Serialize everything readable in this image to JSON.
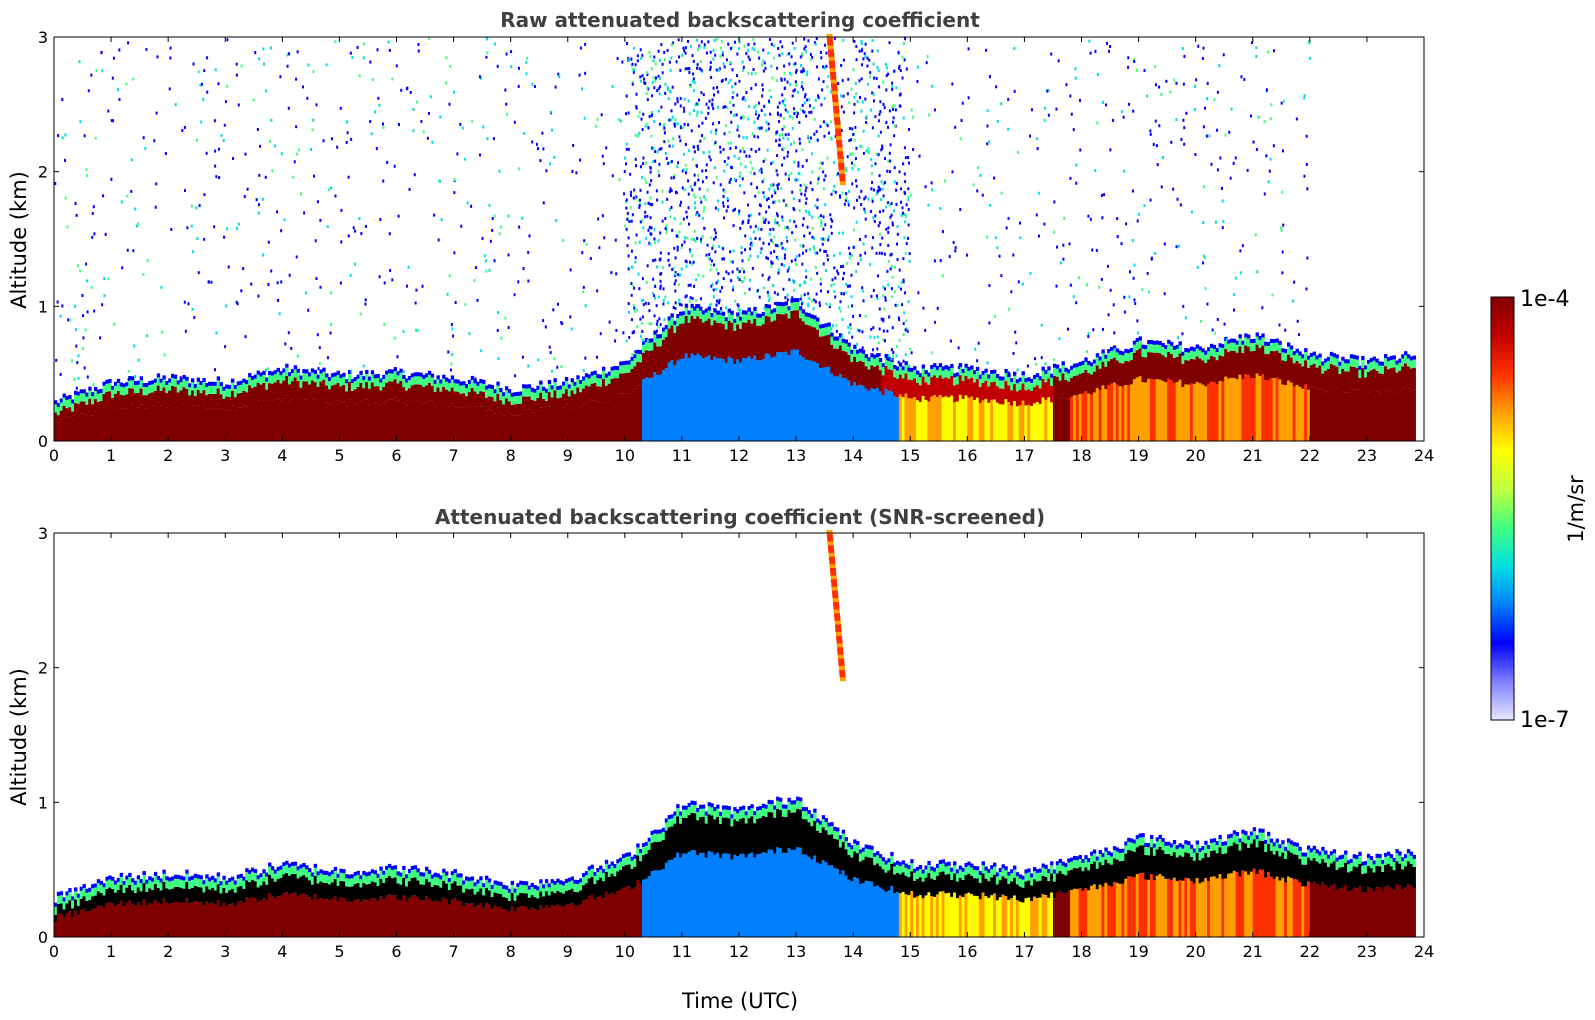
{
  "chart_data": [
    {
      "type": "heatmap",
      "title": "Raw attenuated backscattering coefficient",
      "xlabel": "",
      "ylabel": "Altitude (km)",
      "xlim": [
        0,
        24
      ],
      "ylim": [
        0,
        3
      ],
      "x_ticks": [
        "0",
        "1",
        "2",
        "3",
        "4",
        "5",
        "6",
        "7",
        "8",
        "9",
        "10",
        "11",
        "12",
        "13",
        "14",
        "15",
        "16",
        "17",
        "18",
        "19",
        "20",
        "21",
        "22",
        "23",
        "24"
      ],
      "y_ticks": [
        "0",
        "1",
        "2",
        "3"
      ],
      "screened": false,
      "boundary_layer_top_km": [
        {
          "t": 0,
          "h": 0.2
        },
        {
          "t": 1,
          "h": 0.35
        },
        {
          "t": 2,
          "h": 0.38
        },
        {
          "t": 3,
          "h": 0.35
        },
        {
          "t": 4,
          "h": 0.45
        },
        {
          "t": 5,
          "h": 0.4
        },
        {
          "t": 6,
          "h": 0.42
        },
        {
          "t": 7,
          "h": 0.38
        },
        {
          "t": 8,
          "h": 0.3
        },
        {
          "t": 9,
          "h": 0.35
        },
        {
          "t": 10,
          "h": 0.5
        },
        {
          "t": 11,
          "h": 0.9
        },
        {
          "t": 12,
          "h": 0.85
        },
        {
          "t": 13,
          "h": 0.95
        },
        {
          "t": 14,
          "h": 0.6
        },
        {
          "t": 15,
          "h": 0.45
        },
        {
          "t": 16,
          "h": 0.45
        },
        {
          "t": 17,
          "h": 0.4
        },
        {
          "t": 18,
          "h": 0.5
        },
        {
          "t": 19,
          "h": 0.65
        },
        {
          "t": 20,
          "h": 0.6
        },
        {
          "t": 21,
          "h": 0.7
        },
        {
          "t": 22,
          "h": 0.55
        },
        {
          "t": 23,
          "h": 0.5
        },
        {
          "t": 23.8,
          "h": 0.55
        }
      ]
    },
    {
      "type": "heatmap",
      "title": "Attenuated backscattering coefficient (SNR-screened)",
      "xlabel": "Time (UTC)",
      "ylabel": "Altitude (km)",
      "xlim": [
        0,
        24
      ],
      "ylim": [
        0,
        3
      ],
      "x_ticks": [
        "0",
        "1",
        "2",
        "3",
        "4",
        "5",
        "6",
        "7",
        "8",
        "9",
        "10",
        "11",
        "12",
        "13",
        "14",
        "15",
        "16",
        "17",
        "18",
        "19",
        "20",
        "21",
        "22",
        "23",
        "24"
      ],
      "y_ticks": [
        "0",
        "1",
        "2",
        "3"
      ],
      "screened": true
    }
  ],
  "colorbar": {
    "max_label": "1e-4",
    "min_label": "1e-7",
    "unit_label": "1/m/sr",
    "colors": [
      "#e8e8ff",
      "#7f7fff",
      "#0000ff",
      "#0080ff",
      "#00e0e0",
      "#40ff80",
      "#c0ff40",
      "#ffff00",
      "#ffa000",
      "#ff3000",
      "#c00000",
      "#800000"
    ]
  }
}
